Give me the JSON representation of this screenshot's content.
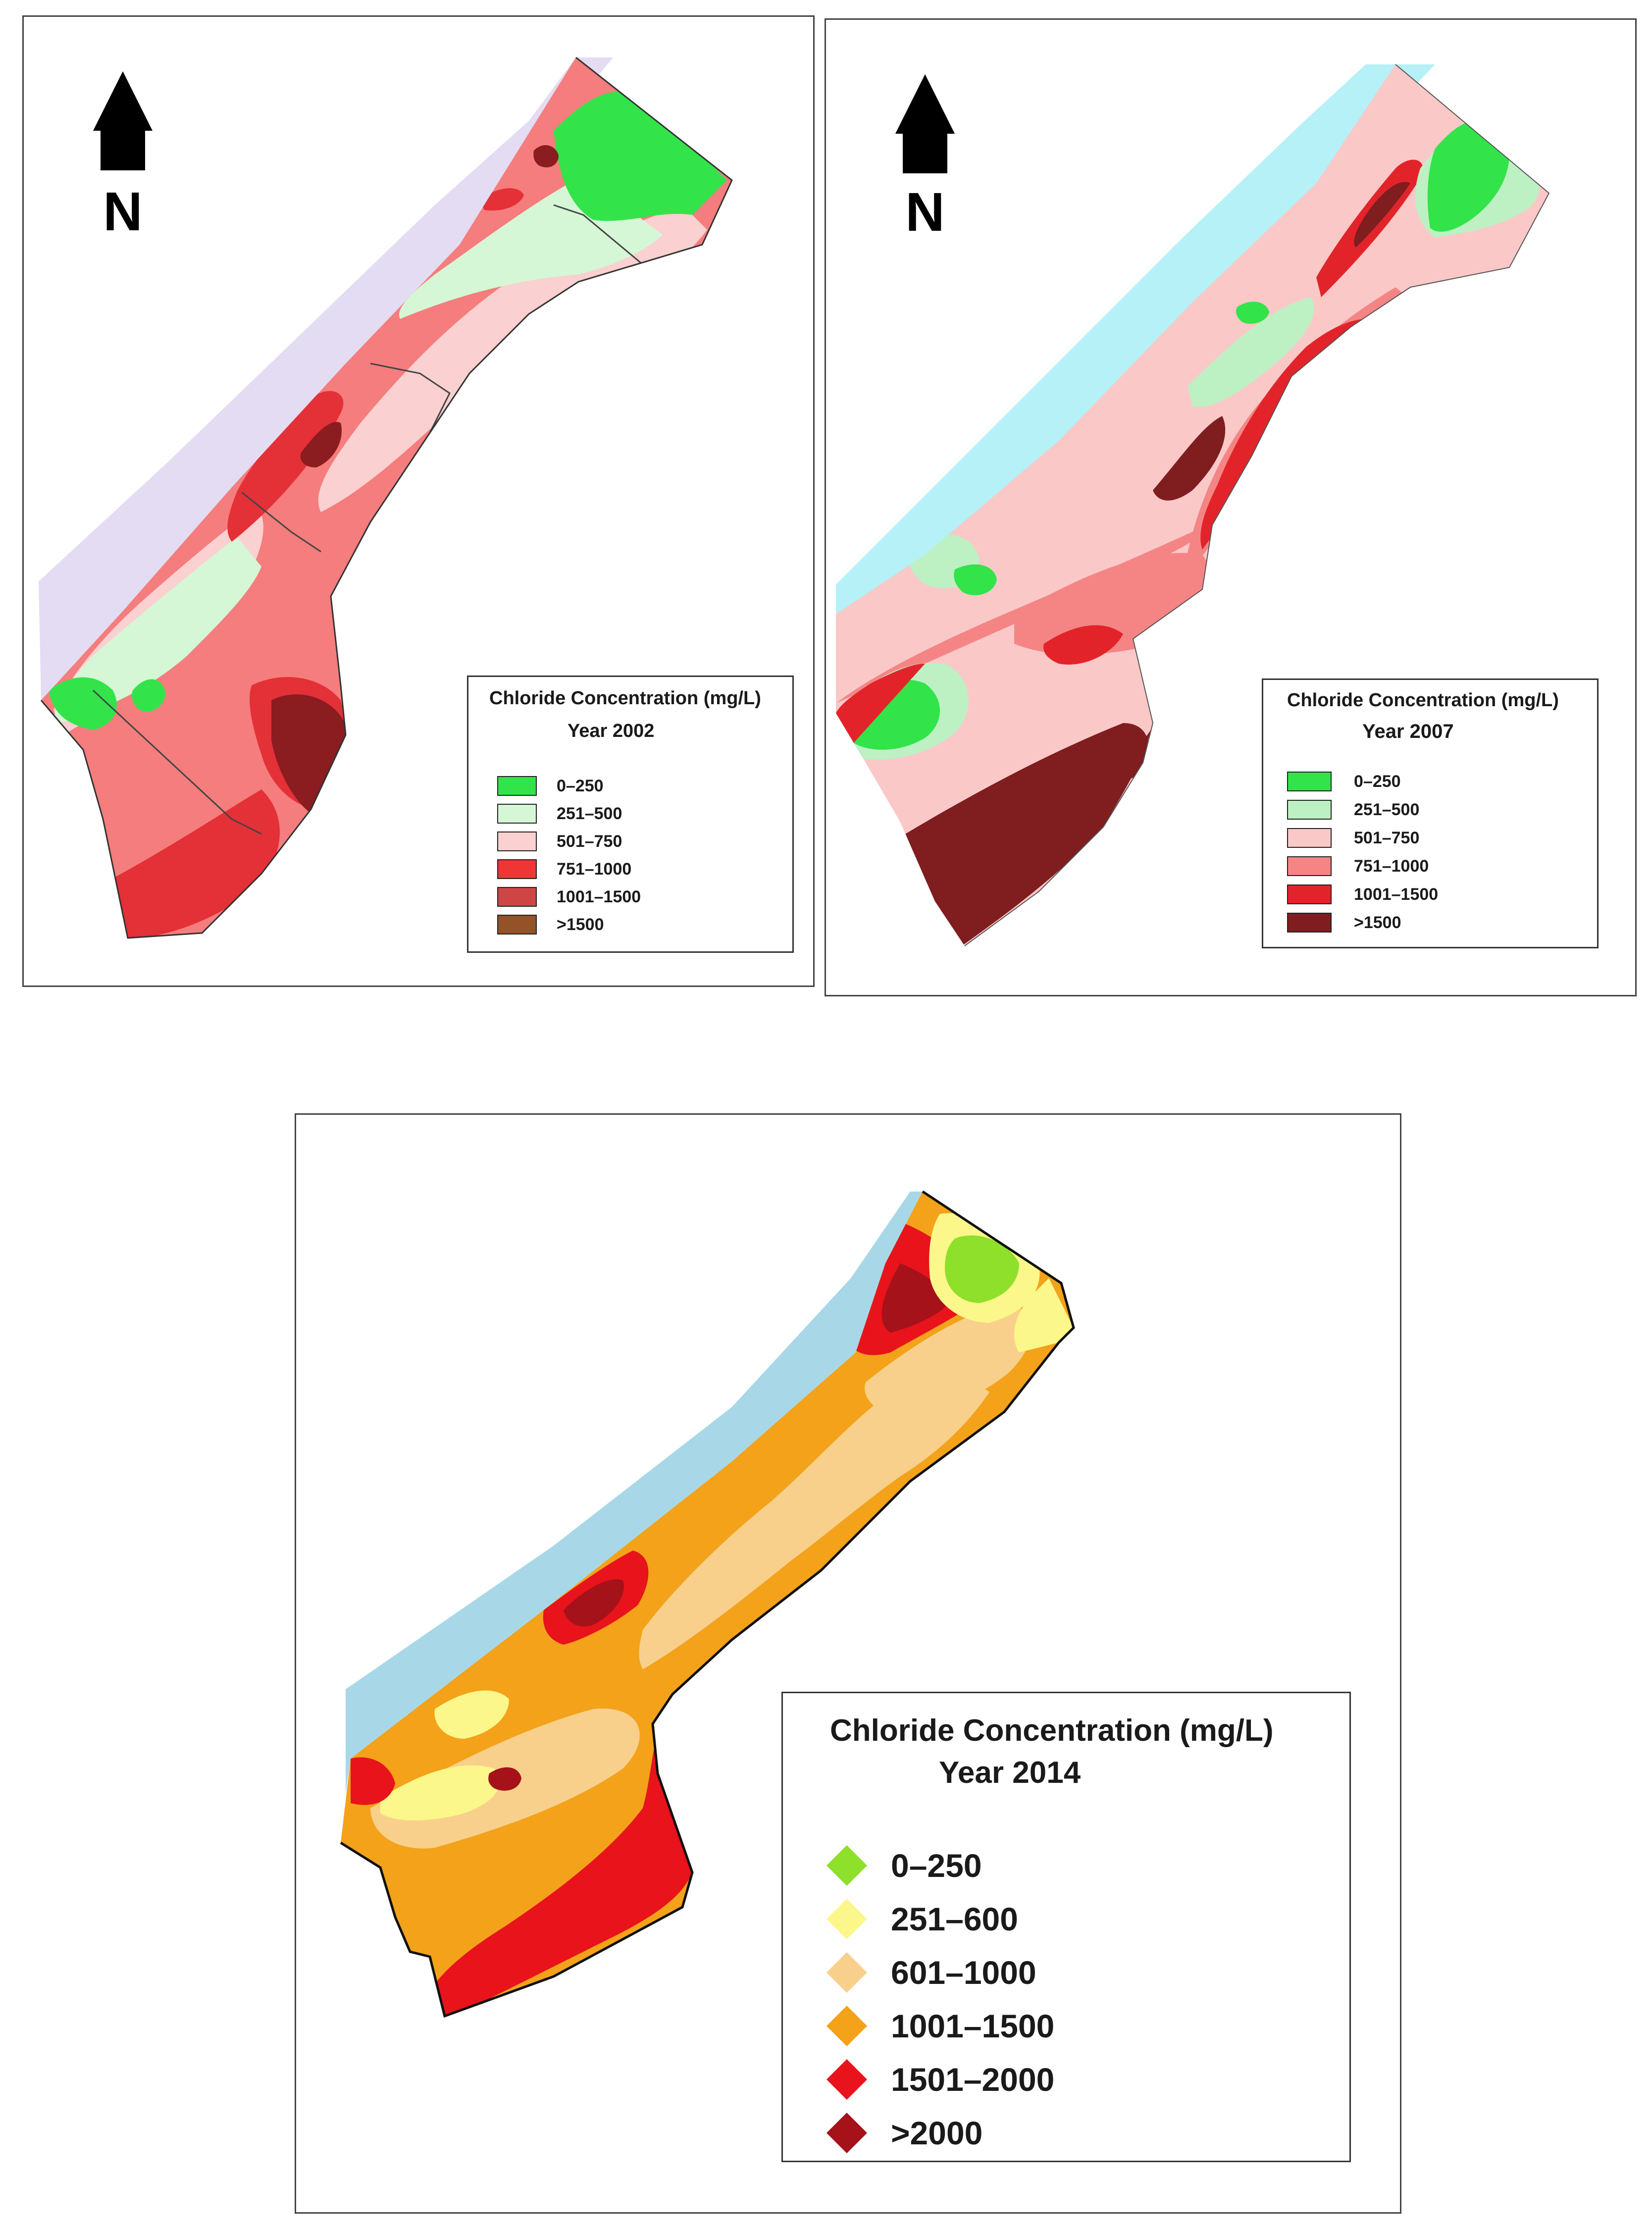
{
  "north_label": "N",
  "maps": [
    {
      "year_label": "Year 2002",
      "legend_title": "Chloride Concentration (mg/L)",
      "colors": {
        "sea": "#e3dcf3",
        "c1": "#33e34a",
        "c2": "#d5f7d6",
        "c3": "#fbd0d0",
        "c4": "#f57d7d",
        "c5": "#e43037",
        "c6": "#8b1c1f"
      },
      "classes": [
        {
          "label": "0–250",
          "color": "#33e34a"
        },
        {
          "label": "251–500",
          "color": "#d5f7d6"
        },
        {
          "label": "501–750",
          "color": "#fbd0d0"
        },
        {
          "label": "751–1000",
          "color": "#f03535"
        },
        {
          "label": "1001–1500",
          "color": "#cf4545"
        },
        {
          "label": ">1500",
          "color": "#935228"
        }
      ]
    },
    {
      "year_label": "Year 2007",
      "legend_title": "Chloride Concentration (mg/L)",
      "colors": {
        "sea": "#b5f1f7",
        "c1": "#33e34a",
        "c2": "#bdf1c3",
        "c3": "#fbc8c8",
        "c4": "#f58585",
        "c5": "#e2242a",
        "c6": "#7f1d1f"
      },
      "classes": [
        {
          "label": "0–250",
          "color": "#33e34a"
        },
        {
          "label": "251–500",
          "color": "#bdf1c3"
        },
        {
          "label": "501–750",
          "color": "#fbc8c8"
        },
        {
          "label": "751–1000",
          "color": "#f58585"
        },
        {
          "label": "1001–1500",
          "color": "#e2242a"
        },
        {
          "label": ">1500",
          "color": "#7f1d1f"
        }
      ]
    },
    {
      "year_label": "Year 2014",
      "legend_title": "Chloride Concentration (mg/L)",
      "colors": {
        "sea": "#a8d8e8",
        "c1": "#8ee02a",
        "c2": "#fcf78a",
        "c3": "#f8d08c",
        "c4": "#f3a21a",
        "c5": "#e8131b",
        "c6": "#a5121a"
      },
      "classes": [
        {
          "label": "0–250",
          "color": "#8ee02a"
        },
        {
          "label": "251–600",
          "color": "#fcf78a"
        },
        {
          "label": "601–1000",
          "color": "#f8d08c"
        },
        {
          "label": "1001–1500",
          "color": "#f3a21a"
        },
        {
          "label": "1501–2000",
          "color": "#e8131b"
        },
        {
          "label": ">2000",
          "color": "#a5121a"
        }
      ]
    }
  ]
}
